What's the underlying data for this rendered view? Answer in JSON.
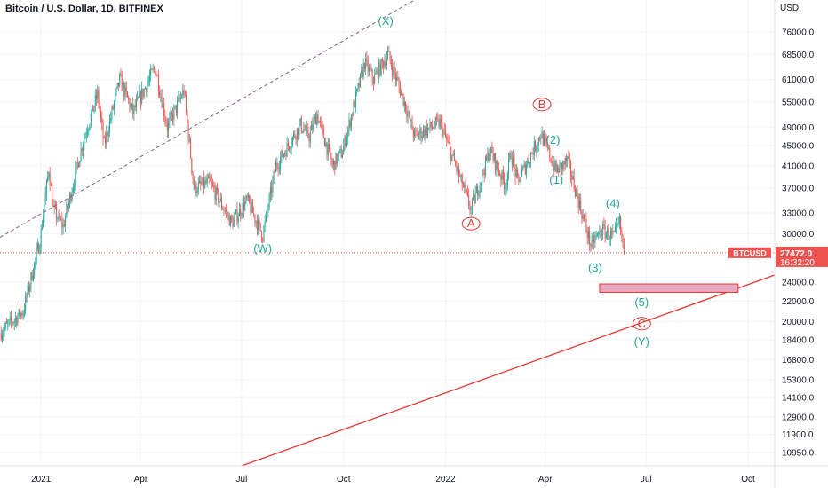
{
  "title": "Bitcoin / U.S. Dollar, 1D, BITFINEX",
  "colors": {
    "up": "#26a69a",
    "down": "#ef5350",
    "grid": "#f0f3fa",
    "axis_text": "#131722",
    "wave_green": "#26a69a",
    "wave_red": "#e53935",
    "trend_red": "#e53935",
    "channel_dash": "#8e5a7e",
    "price_line": "#ef5350",
    "target_box_fill": "#e2a9c1",
    "target_box_stroke": "#e53935"
  },
  "price_tag": {
    "symbol": "BTCUSD",
    "price": "27472.0",
    "countdown": "16:32:20"
  },
  "chart_data": {
    "type": "candlestick",
    "title": "Bitcoin / U.S. Dollar, 1D, BITFINEX",
    "y_unit": "USD",
    "y_scale": "log",
    "ylim": [
      10300,
      88000
    ],
    "xlim": [
      "2020-11-25",
      "2022-10-25"
    ],
    "y_ticks": [
      "76000.0",
      "68500.0",
      "61000.0",
      "55000.0",
      "49000.0",
      "45000.0",
      "41000.0",
      "37000.0",
      "33000.0",
      "30000.0",
      "24000.0",
      "22000.0",
      "20000.0",
      "18400.0",
      "16800.0",
      "15300.0",
      "14100.0",
      "12900.0",
      "11900.0",
      "10950.0"
    ],
    "x_ticks": [
      {
        "date": "2021-01-01",
        "label": "2021"
      },
      {
        "date": "2021-04-01",
        "label": "Apr"
      },
      {
        "date": "2021-07-01",
        "label": "Jul"
      },
      {
        "date": "2021-10-01",
        "label": "Oct"
      },
      {
        "date": "2022-01-01",
        "label": "2022"
      },
      {
        "date": "2022-04-01",
        "label": "Apr"
      },
      {
        "date": "2022-07-01",
        "label": "Jul"
      },
      {
        "date": "2022-10-01",
        "label": "Oct"
      }
    ],
    "price_path": [
      [
        "2020-11-25",
        19000
      ],
      [
        "2020-12-16",
        21000
      ],
      [
        "2020-12-31",
        29000
      ],
      [
        "2021-01-08",
        40500
      ],
      [
        "2021-01-12",
        33500
      ],
      [
        "2021-01-21",
        31000
      ],
      [
        "2021-02-08",
        46000
      ],
      [
        "2021-02-21",
        57000
      ],
      [
        "2021-02-27",
        45000
      ],
      [
        "2021-03-13",
        61000
      ],
      [
        "2021-03-25",
        52500
      ],
      [
        "2021-04-14",
        64500
      ],
      [
        "2021-04-25",
        49000
      ],
      [
        "2021-05-10",
        58000
      ],
      [
        "2021-05-19",
        37000
      ],
      [
        "2021-06-02",
        38000
      ],
      [
        "2021-06-22",
        31500
      ],
      [
        "2021-07-06",
        35000
      ],
      [
        "2021-07-20",
        29800
      ],
      [
        "2021-08-01",
        41000
      ],
      [
        "2021-08-23",
        49500
      ],
      [
        "2021-08-31",
        47000
      ],
      [
        "2021-09-07",
        52000
      ],
      [
        "2021-09-21",
        41000
      ],
      [
        "2021-09-30",
        43800
      ],
      [
        "2021-10-20",
        66000
      ],
      [
        "2021-10-28",
        61000
      ],
      [
        "2021-11-10",
        68500
      ],
      [
        "2021-11-26",
        54000
      ],
      [
        "2021-12-04",
        47000
      ],
      [
        "2021-12-27",
        50000
      ],
      [
        "2022-01-10",
        41000
      ],
      [
        "2022-01-24",
        33500
      ],
      [
        "2022-02-10",
        44000
      ],
      [
        "2022-02-24",
        37500
      ],
      [
        "2022-03-01",
        43500
      ],
      [
        "2022-03-07",
        38000
      ],
      [
        "2022-03-28",
        47500
      ],
      [
        "2022-04-11",
        40000
      ],
      [
        "2022-04-21",
        42000
      ],
      [
        "2022-05-12",
        28500
      ],
      [
        "2022-05-22",
        30500
      ],
      [
        "2022-06-02",
        29500
      ],
      [
        "2022-06-07",
        31500
      ],
      [
        "2022-06-11",
        27472
      ]
    ],
    "annotations": [
      {
        "label": "(X)",
        "date": "2021-11-08",
        "price": 78500,
        "color": "green",
        "circled": false
      },
      {
        "label": "(W)",
        "date": "2021-07-20",
        "price": 27500,
        "color": "green",
        "circled": false
      },
      {
        "label": "B",
        "date": "2022-03-29",
        "price": 53500,
        "color": "red",
        "circled": true
      },
      {
        "label": "A",
        "date": "2022-01-24",
        "price": 30900,
        "color": "red",
        "circled": true
      },
      {
        "label": "(2)",
        "date": "2022-04-08",
        "price": 45400,
        "color": "green",
        "circled": false
      },
      {
        "label": "(1)",
        "date": "2022-04-11",
        "price": 37800,
        "color": "green",
        "circled": false
      },
      {
        "label": "(4)",
        "date": "2022-06-01",
        "price": 33900,
        "color": "green",
        "circled": false
      },
      {
        "label": "(3)",
        "date": "2022-05-16",
        "price": 25200,
        "color": "green",
        "circled": false
      },
      {
        "label": "(5)",
        "date": "2022-06-27",
        "price": 21500,
        "color": "green",
        "circled": false
      },
      {
        "label": "C",
        "date": "2022-06-27",
        "price": 19500,
        "color": "red",
        "circled": true
      },
      {
        "label": "(Y)",
        "date": "2022-06-27",
        "price": 17900,
        "color": "green",
        "circled": false
      }
    ],
    "target_zone": {
      "from": "2022-05-20",
      "to": "2022-09-22",
      "high": 23800,
      "low": 22900
    },
    "trendline": {
      "from": [
        "2021-07-01",
        10300
      ],
      "to": [
        "2022-10-25",
        24800
      ]
    },
    "channel_line": {
      "from": [
        "2020-11-25",
        29500
      ],
      "to": [
        "2021-12-04",
        88000
      ]
    },
    "last_price": 27472.0
  }
}
